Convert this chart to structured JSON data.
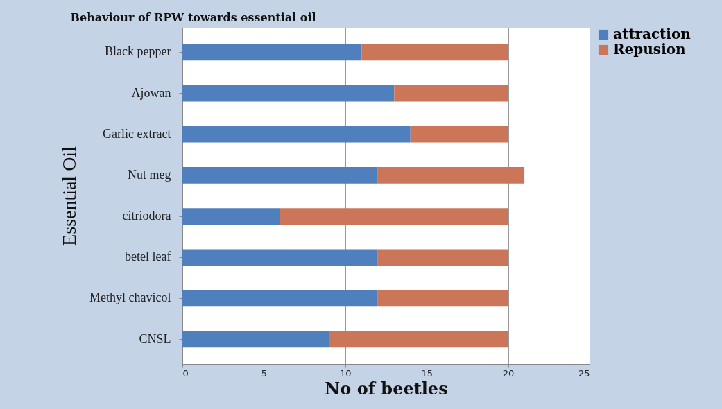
{
  "chart_data": {
    "type": "bar",
    "orientation": "horizontal",
    "stacked": true,
    "title": "Behaviour of RPW towards essential oil",
    "xlabel": "No of beetles",
    "ylabel": "Essential Oil",
    "categories": [
      "Black pepper",
      "Ajowan",
      "Garlic extract",
      "Nut meg",
      "citriodora",
      "betel leaf",
      "Methyl chavicol",
      "CNSL"
    ],
    "series": [
      {
        "name": "attraction",
        "color": "#4f7fbd",
        "values": [
          11,
          13,
          14,
          12,
          6,
          12,
          12,
          9
        ]
      },
      {
        "name": "Repusion",
        "color": "#cb7658",
        "values": [
          9,
          7,
          6,
          9,
          14,
          8,
          8,
          11
        ]
      }
    ],
    "xlim": [
      0,
      25
    ],
    "xticks": [
      0,
      5,
      10,
      15,
      20,
      25
    ],
    "grid": "x",
    "legend": "right"
  }
}
